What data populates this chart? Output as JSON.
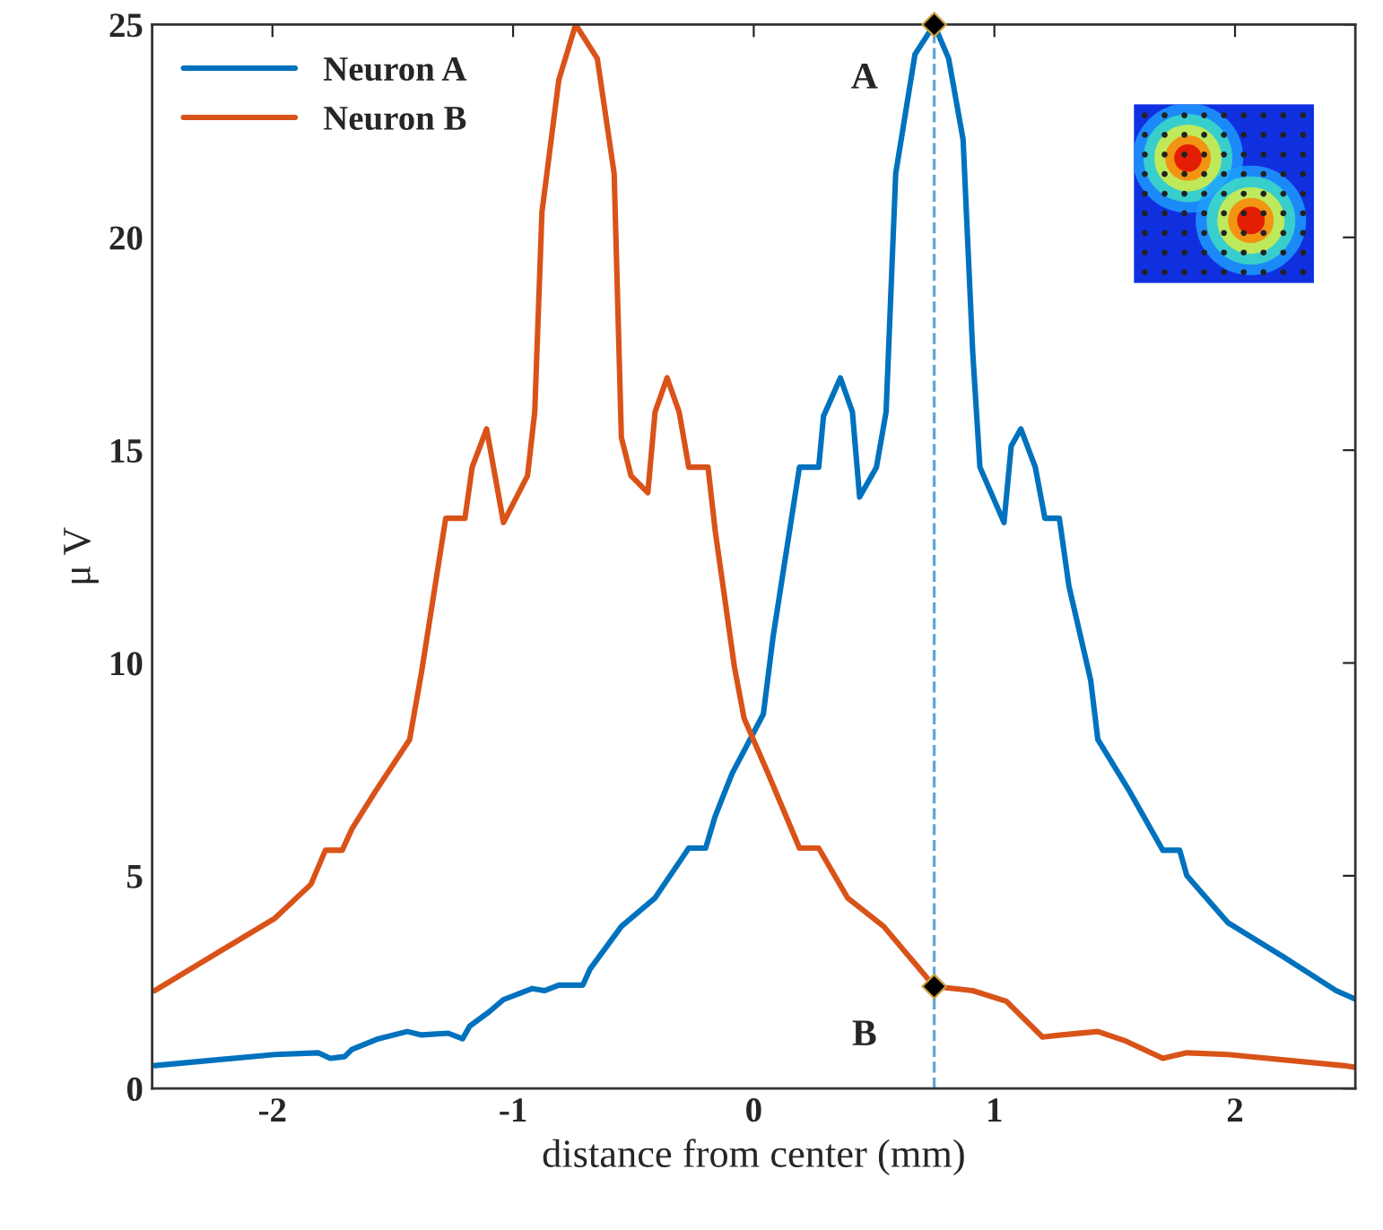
{
  "chart_data": {
    "type": "line",
    "xlabel": "distance from center (mm)",
    "ylabel": "μ V",
    "xlim": [
      -2.5,
      2.5
    ],
    "ylim": [
      0,
      25
    ],
    "xticks": [
      -2,
      -1,
      0,
      1,
      2
    ],
    "yticks": [
      0,
      5,
      10,
      15,
      20,
      25
    ],
    "grid": false,
    "legend": "top left",
    "series": [
      {
        "name": "Neuron A",
        "color": "#0072bd",
        "x": [
          -2.49,
          -1.99,
          -1.81,
          -1.76,
          -1.7,
          -1.67,
          -1.56,
          -1.44,
          -1.38,
          -1.27,
          -1.21,
          -1.18,
          -1.1,
          -1.04,
          -0.92,
          -0.87,
          -0.81,
          -0.71,
          -0.68,
          -0.55,
          -0.41,
          -0.27,
          -0.2,
          -0.16,
          -0.09,
          0.04,
          0.08,
          0.19,
          0.27,
          0.29,
          0.36,
          0.41,
          0.44,
          0.51,
          0.55,
          0.59,
          0.67,
          0.75,
          0.81,
          0.87,
          0.91,
          0.94,
          1.04,
          1.07,
          1.11,
          1.17,
          1.21,
          1.27,
          1.31,
          1.4,
          1.43,
          1.56,
          1.7,
          1.77,
          1.8,
          1.97,
          2.2,
          2.42,
          2.5
        ],
        "values": [
          0.54,
          0.8,
          0.84,
          0.71,
          0.75,
          0.92,
          1.17,
          1.34,
          1.26,
          1.3,
          1.17,
          1.47,
          1.8,
          2.09,
          2.35,
          2.3,
          2.43,
          2.43,
          2.81,
          3.81,
          4.48,
          5.65,
          5.65,
          6.4,
          7.4,
          8.8,
          10.6,
          14.6,
          14.6,
          15.8,
          16.7,
          15.9,
          13.9,
          14.6,
          15.9,
          21.5,
          24.3,
          25,
          24.2,
          22.3,
          17.3,
          14.6,
          13.3,
          15.1,
          15.5,
          14.6,
          13.4,
          13.4,
          11.8,
          9.6,
          8.2,
          7.0,
          5.6,
          5.6,
          5.0,
          3.9,
          3.1,
          2.3,
          2.1
        ]
      },
      {
        "name": "Neuron B",
        "color": "#d95319",
        "x": [
          -2.49,
          -1.99,
          -1.84,
          -1.78,
          -1.71,
          -1.67,
          -1.57,
          -1.43,
          -1.38,
          -1.28,
          -1.2,
          -1.17,
          -1.11,
          -1.04,
          -0.94,
          -0.91,
          -0.88,
          -0.81,
          -0.74,
          -0.65,
          -0.58,
          -0.55,
          -0.51,
          -0.44,
          -0.41,
          -0.36,
          -0.31,
          -0.27,
          -0.19,
          -0.16,
          -0.08,
          -0.04,
          0.06,
          0.19,
          0.27,
          0.39,
          0.54,
          0.75,
          0.91,
          1.05,
          1.2,
          1.28,
          1.43,
          1.54,
          1.7,
          1.8,
          1.97,
          2.45,
          2.5
        ],
        "values": [
          2.3,
          4.0,
          4.8,
          5.6,
          5.6,
          6.1,
          7.0,
          8.2,
          9.8,
          13.4,
          13.4,
          14.6,
          15.5,
          13.3,
          14.4,
          15.9,
          20.6,
          23.7,
          25,
          24.2,
          21.5,
          15.3,
          14.4,
          14.0,
          15.9,
          16.7,
          15.9,
          14.6,
          14.6,
          13.1,
          9.9,
          8.7,
          7.4,
          5.65,
          5.65,
          4.48,
          3.81,
          2.4,
          2.3,
          2.05,
          1.21,
          1.26,
          1.34,
          1.13,
          0.71,
          0.84,
          0.8,
          0.54,
          0.5
        ]
      },
      {
        "type": "scatter",
        "color": "#000000",
        "marker": "diamond",
        "x": [
          0.75,
          0.75
        ],
        "values": [
          25,
          2.4
        ]
      }
    ],
    "ref_lines": [
      {
        "axis": "x",
        "value": 0.75,
        "color": "#5fa8dc",
        "line_style": "dashed"
      }
    ],
    "annotations": [
      {
        "text": "A",
        "x": 0.75,
        "y": 25
      },
      {
        "text": "B",
        "x": 0.75,
        "y": 2.4
      }
    ]
  }
}
